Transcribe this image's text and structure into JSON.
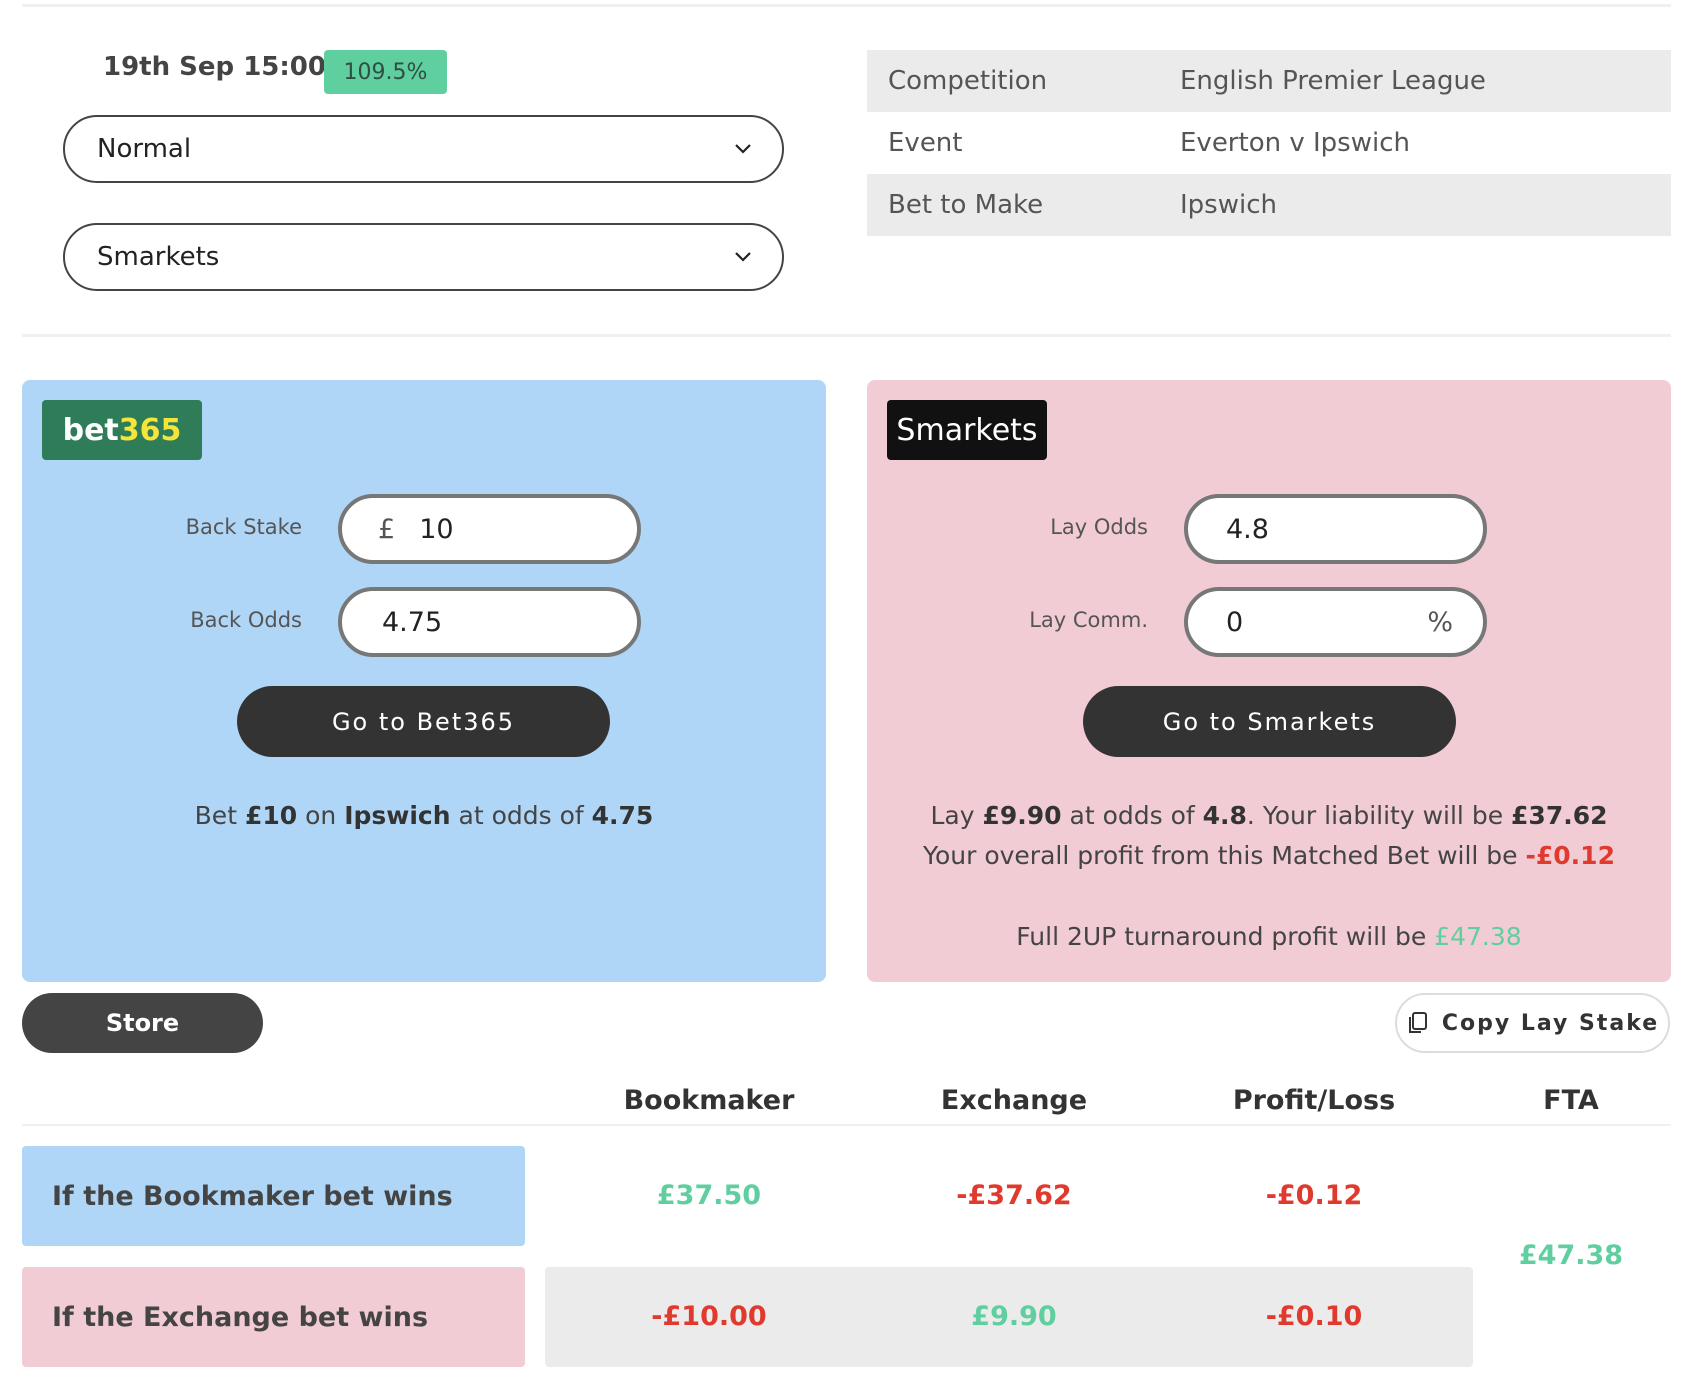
{
  "header": {
    "date": "19th Sep 15:00",
    "badge": "109.5%",
    "mode": "Normal",
    "exchange": "Smarkets"
  },
  "info": [
    {
      "label": "Competition",
      "value": "English Premier League"
    },
    {
      "label": "Event",
      "value": "Everton v Ipswich"
    },
    {
      "label": "Bet to Make",
      "value": "Ipswich"
    }
  ],
  "bookmaker": {
    "logo": [
      "bet",
      "365"
    ],
    "back_stake_label": "Back Stake",
    "currency": "£",
    "back_stake": "10",
    "back_odds_label": "Back Odds",
    "back_odds": "4.75",
    "button": "Go to Bet365",
    "instruction": [
      "Bet",
      "£10",
      "on",
      "Ipswich",
      "at odds of",
      "4.75"
    ]
  },
  "exchange": {
    "logo": "Smarkets",
    "lay_odds_label": "Lay Odds",
    "lay_odds": "4.8",
    "lay_comm_label": "Lay Comm.",
    "lay_comm": "0",
    "percent": "%",
    "button": "Go to Smarkets",
    "line1": [
      "Lay",
      "£9.90",
      "at odds of",
      "4.8",
      ". Your liability will be",
      "£37.62"
    ],
    "line2": [
      "Your overall profit from this Matched Bet will be",
      "-£0.12"
    ],
    "line3": [
      "Full 2UP turnaround profit will be",
      "£47.38"
    ]
  },
  "actions": {
    "store": "Store",
    "copy": "Copy Lay Stake"
  },
  "table": {
    "columns": [
      "Bookmaker",
      "Exchange",
      "Profit/Loss",
      "FTA"
    ],
    "rows": [
      {
        "label": "If the Bookmaker bet wins",
        "values": [
          "£37.50",
          "-£37.62",
          "-£0.12"
        ]
      },
      {
        "label": "If the Exchange bet wins",
        "values": [
          "-£10.00",
          "£9.90",
          "-£0.10"
        ]
      }
    ],
    "fta": "£47.38"
  }
}
